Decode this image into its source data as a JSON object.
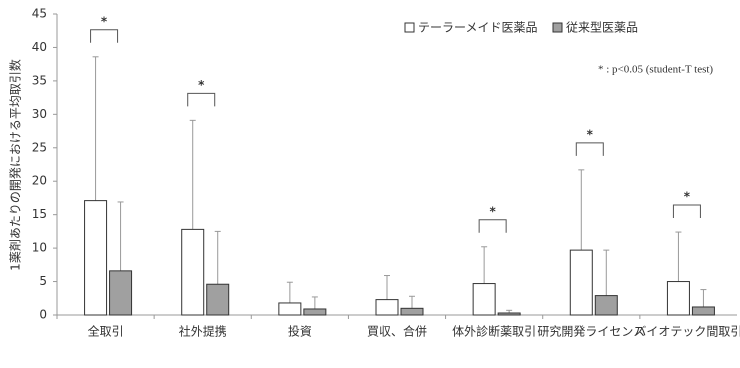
{
  "chart_data": {
    "type": "bar",
    "y_label": "1薬剤あたりの開発における平均取引数",
    "note": "* : p<0.05 (student-T test)",
    "significance_marker": "*",
    "significant": [
      true,
      true,
      false,
      false,
      true,
      true,
      true
    ],
    "categories": [
      "全取引",
      "社外提携",
      "投資",
      "買収、合併",
      "体外診断薬取引",
      "研究開発ライセンス",
      "バイオテック間取引"
    ],
    "series": [
      {
        "name": "テーラーメイド医薬品",
        "color": "#ffffff",
        "values": [
          17.1,
          12.8,
          1.8,
          2.3,
          4.7,
          9.7,
          5.0
        ],
        "errors": [
          21.5,
          16.3,
          3.1,
          3.6,
          5.5,
          12.0,
          7.4
        ]
      },
      {
        "name": "従来型医薬品",
        "color": "#a0a0a0",
        "values": [
          6.6,
          4.6,
          0.9,
          1.0,
          0.3,
          2.9,
          1.2
        ],
        "errors": [
          10.3,
          7.9,
          1.8,
          1.8,
          0.4,
          6.8,
          2.6
        ]
      }
    ],
    "ylim": [
      0,
      45
    ],
    "yticks": [
      0,
      5,
      10,
      15,
      20,
      25,
      30,
      35,
      40,
      45
    ],
    "legend": "top-right"
  }
}
